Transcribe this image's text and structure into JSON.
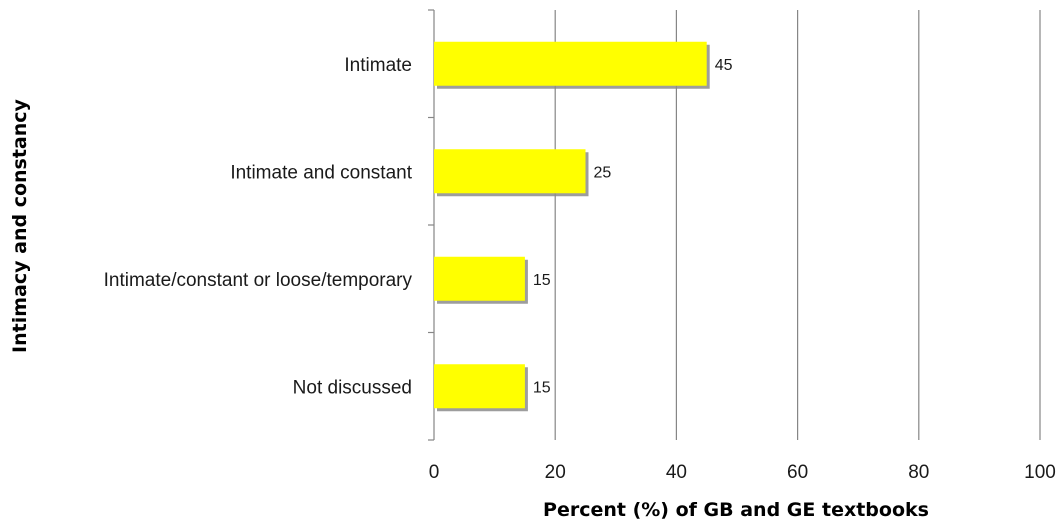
{
  "colors": {
    "bar_fill": "#ffff00",
    "bar_shadow": "#8c8c8c",
    "gridline": "#868686",
    "axis": "#868686",
    "text": "#1a1a1a"
  },
  "chart_data": {
    "type": "bar",
    "orientation": "horizontal",
    "categories": [
      "Intimate",
      "Intimate and constant",
      "Intimate/constant or loose/temporary",
      "Not discussed"
    ],
    "values": [
      45,
      25,
      15,
      15
    ],
    "data_labels": [
      "45",
      "25",
      "15",
      "15"
    ],
    "xlabel": "Percent (%) of GB and GE textbooks",
    "ylabel": "Intimacy and constancy",
    "xlim": [
      0,
      100
    ],
    "x_ticks": [
      0,
      20,
      40,
      60,
      80,
      100
    ],
    "x_tick_labels": [
      "0",
      "20",
      "40",
      "60",
      "80",
      "100"
    ],
    "grid": "vertical major gridlines",
    "legend": "none"
  }
}
